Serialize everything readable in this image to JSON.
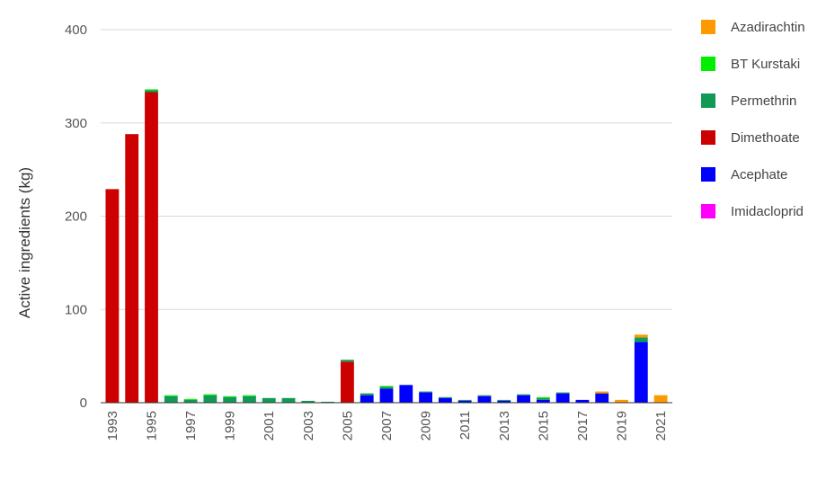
{
  "chart_data": {
    "type": "bar",
    "stacked": true,
    "title": "",
    "xlabel": "",
    "ylabel": "Active ingredients (kg)",
    "ylim": [
      0,
      400
    ],
    "yticks": [
      0,
      100,
      200,
      300,
      400
    ],
    "grid": true,
    "legend_position": "right",
    "categories": [
      "1993",
      "1994",
      "1995",
      "1996",
      "1997",
      "1998",
      "1999",
      "2000",
      "2001",
      "2002",
      "2003",
      "2004",
      "2005",
      "2006",
      "2007",
      "2008",
      "2009",
      "2010",
      "2011",
      "2012",
      "2013",
      "2014",
      "2015",
      "2016",
      "2017",
      "2018",
      "2019",
      "2020",
      "2021"
    ],
    "xtick_labels": [
      "1993",
      "1995",
      "1997",
      "1999",
      "2001",
      "2003",
      "2005",
      "2007",
      "2009",
      "2011",
      "2013",
      "2015",
      "2017",
      "2019",
      "2021"
    ],
    "series": [
      {
        "name": "Imidacloprid",
        "color": "#ff00ff",
        "values": [
          0,
          0,
          0,
          0,
          0,
          0,
          0,
          0,
          0,
          0,
          0,
          0,
          0,
          0,
          0,
          0,
          0,
          0,
          0,
          0,
          0,
          0,
          0,
          0,
          0,
          0,
          0,
          0,
          0
        ]
      },
      {
        "name": "Acephate",
        "color": "#0000ff",
        "values": [
          0,
          0,
          0,
          0,
          0,
          0,
          0,
          0,
          0,
          0,
          0,
          0,
          0,
          8,
          15,
          19,
          11,
          5,
          2,
          7,
          2,
          8,
          3,
          10,
          3,
          10,
          0,
          65,
          0
        ]
      },
      {
        "name": "Dimethoate",
        "color": "#cc0000",
        "values": [
          229,
          288,
          333,
          0,
          0,
          0,
          0,
          0,
          0,
          0,
          0,
          0,
          44,
          0,
          0,
          0,
          0,
          0,
          0,
          0,
          0,
          0,
          0,
          0,
          0,
          0,
          0,
          0,
          0
        ]
      },
      {
        "name": "Permethrin",
        "color": "#109a55",
        "values": [
          0,
          0,
          2,
          7,
          3,
          8,
          6,
          7,
          5,
          5,
          2,
          1,
          2,
          2,
          2,
          0,
          1,
          1,
          1,
          1,
          1,
          1,
          2,
          1,
          0,
          0,
          0,
          5,
          0
        ]
      },
      {
        "name": "BT Kurstaki",
        "color": "#00ee00",
        "values": [
          0,
          0,
          1,
          1,
          1,
          1,
          1,
          1,
          0,
          0,
          0,
          0,
          0,
          0,
          1,
          0,
          0,
          0,
          0,
          0,
          0,
          0,
          1,
          0,
          0,
          0,
          0,
          0,
          0
        ]
      },
      {
        "name": "Azadirachtin",
        "color": "#ff9900",
        "values": [
          0,
          0,
          0,
          0,
          0,
          0,
          0,
          0,
          0,
          0,
          0,
          0,
          0,
          0,
          0,
          0,
          0,
          0,
          0,
          0,
          0,
          0,
          0,
          0,
          0,
          2,
          3,
          3,
          8
        ]
      }
    ],
    "legend_order": [
      "Azadirachtin",
      "BT Kurstaki",
      "Permethrin",
      "Dimethoate",
      "Acephate",
      "Imidacloprid"
    ]
  }
}
